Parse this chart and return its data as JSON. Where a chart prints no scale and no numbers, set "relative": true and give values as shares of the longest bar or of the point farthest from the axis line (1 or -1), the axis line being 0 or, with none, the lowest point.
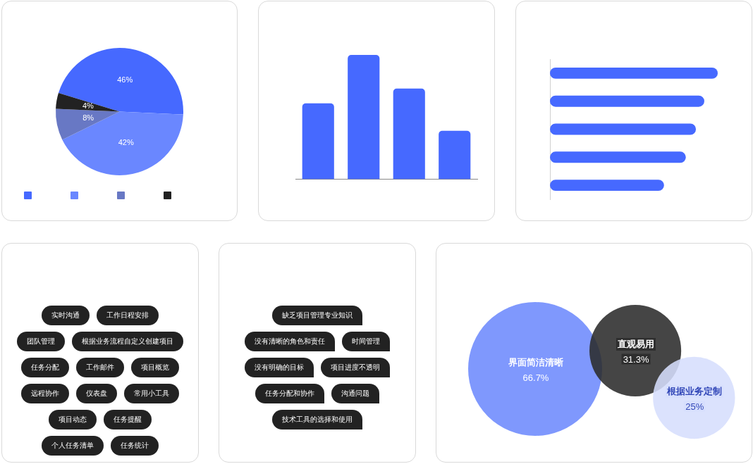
{
  "chart_data": [
    {
      "type": "pie",
      "categories": [
        null,
        null,
        null,
        null
      ],
      "values": [
        46,
        42,
        8,
        4
      ],
      "colors": [
        "#4669ff",
        "#6a87ff",
        "#6878c4",
        "#222222"
      ],
      "value_labels": [
        "46%",
        "42%",
        "8%",
        "4%"
      ]
    },
    {
      "type": "bar",
      "relative": true,
      "categories": [
        null,
        null,
        null,
        null
      ],
      "values": [
        0.61,
        1,
        0.73,
        0.39
      ],
      "color": "#4669ff"
    },
    {
      "type": "bar",
      "relative": true,
      "orientation": "horizontal",
      "categories": [
        null,
        null,
        null,
        null,
        null
      ],
      "values": [
        1,
        0.92,
        0.87,
        0.81,
        0.68
      ],
      "color": "#4669ff"
    },
    {
      "type": "other",
      "annotations": [
        "实时沟通",
        "工作日程安排",
        "团队管理",
        "根据业务流程自定义创建项目",
        "任务分配",
        "工作邮件",
        "项目概览",
        "远程协作",
        "仪表盘",
        "常用小工具",
        "项目动态",
        "任务提醒",
        "个人任务清单",
        "任务统计"
      ],
      "color": "#222222"
    },
    {
      "type": "other",
      "annotations": [
        "缺乏项目管理专业知识",
        "没有清晰的角色和责任",
        "时间管理",
        "没有明确的目标",
        "项目进度不透明",
        "任务分配和协作",
        "沟通问题",
        "技术工具的选择和使用"
      ],
      "color": "#222222"
    },
    {
      "type": "other",
      "categories": [
        "界面简洁清晰",
        "直观易用",
        "根据业务定制"
      ],
      "values": [
        66.7,
        31.3,
        25
      ],
      "colors": [
        "#7f98fd",
        "#2b2b2b",
        "#d6defd"
      ],
      "value_labels": [
        "66.7%",
        "31.3%",
        "25%"
      ]
    }
  ]
}
